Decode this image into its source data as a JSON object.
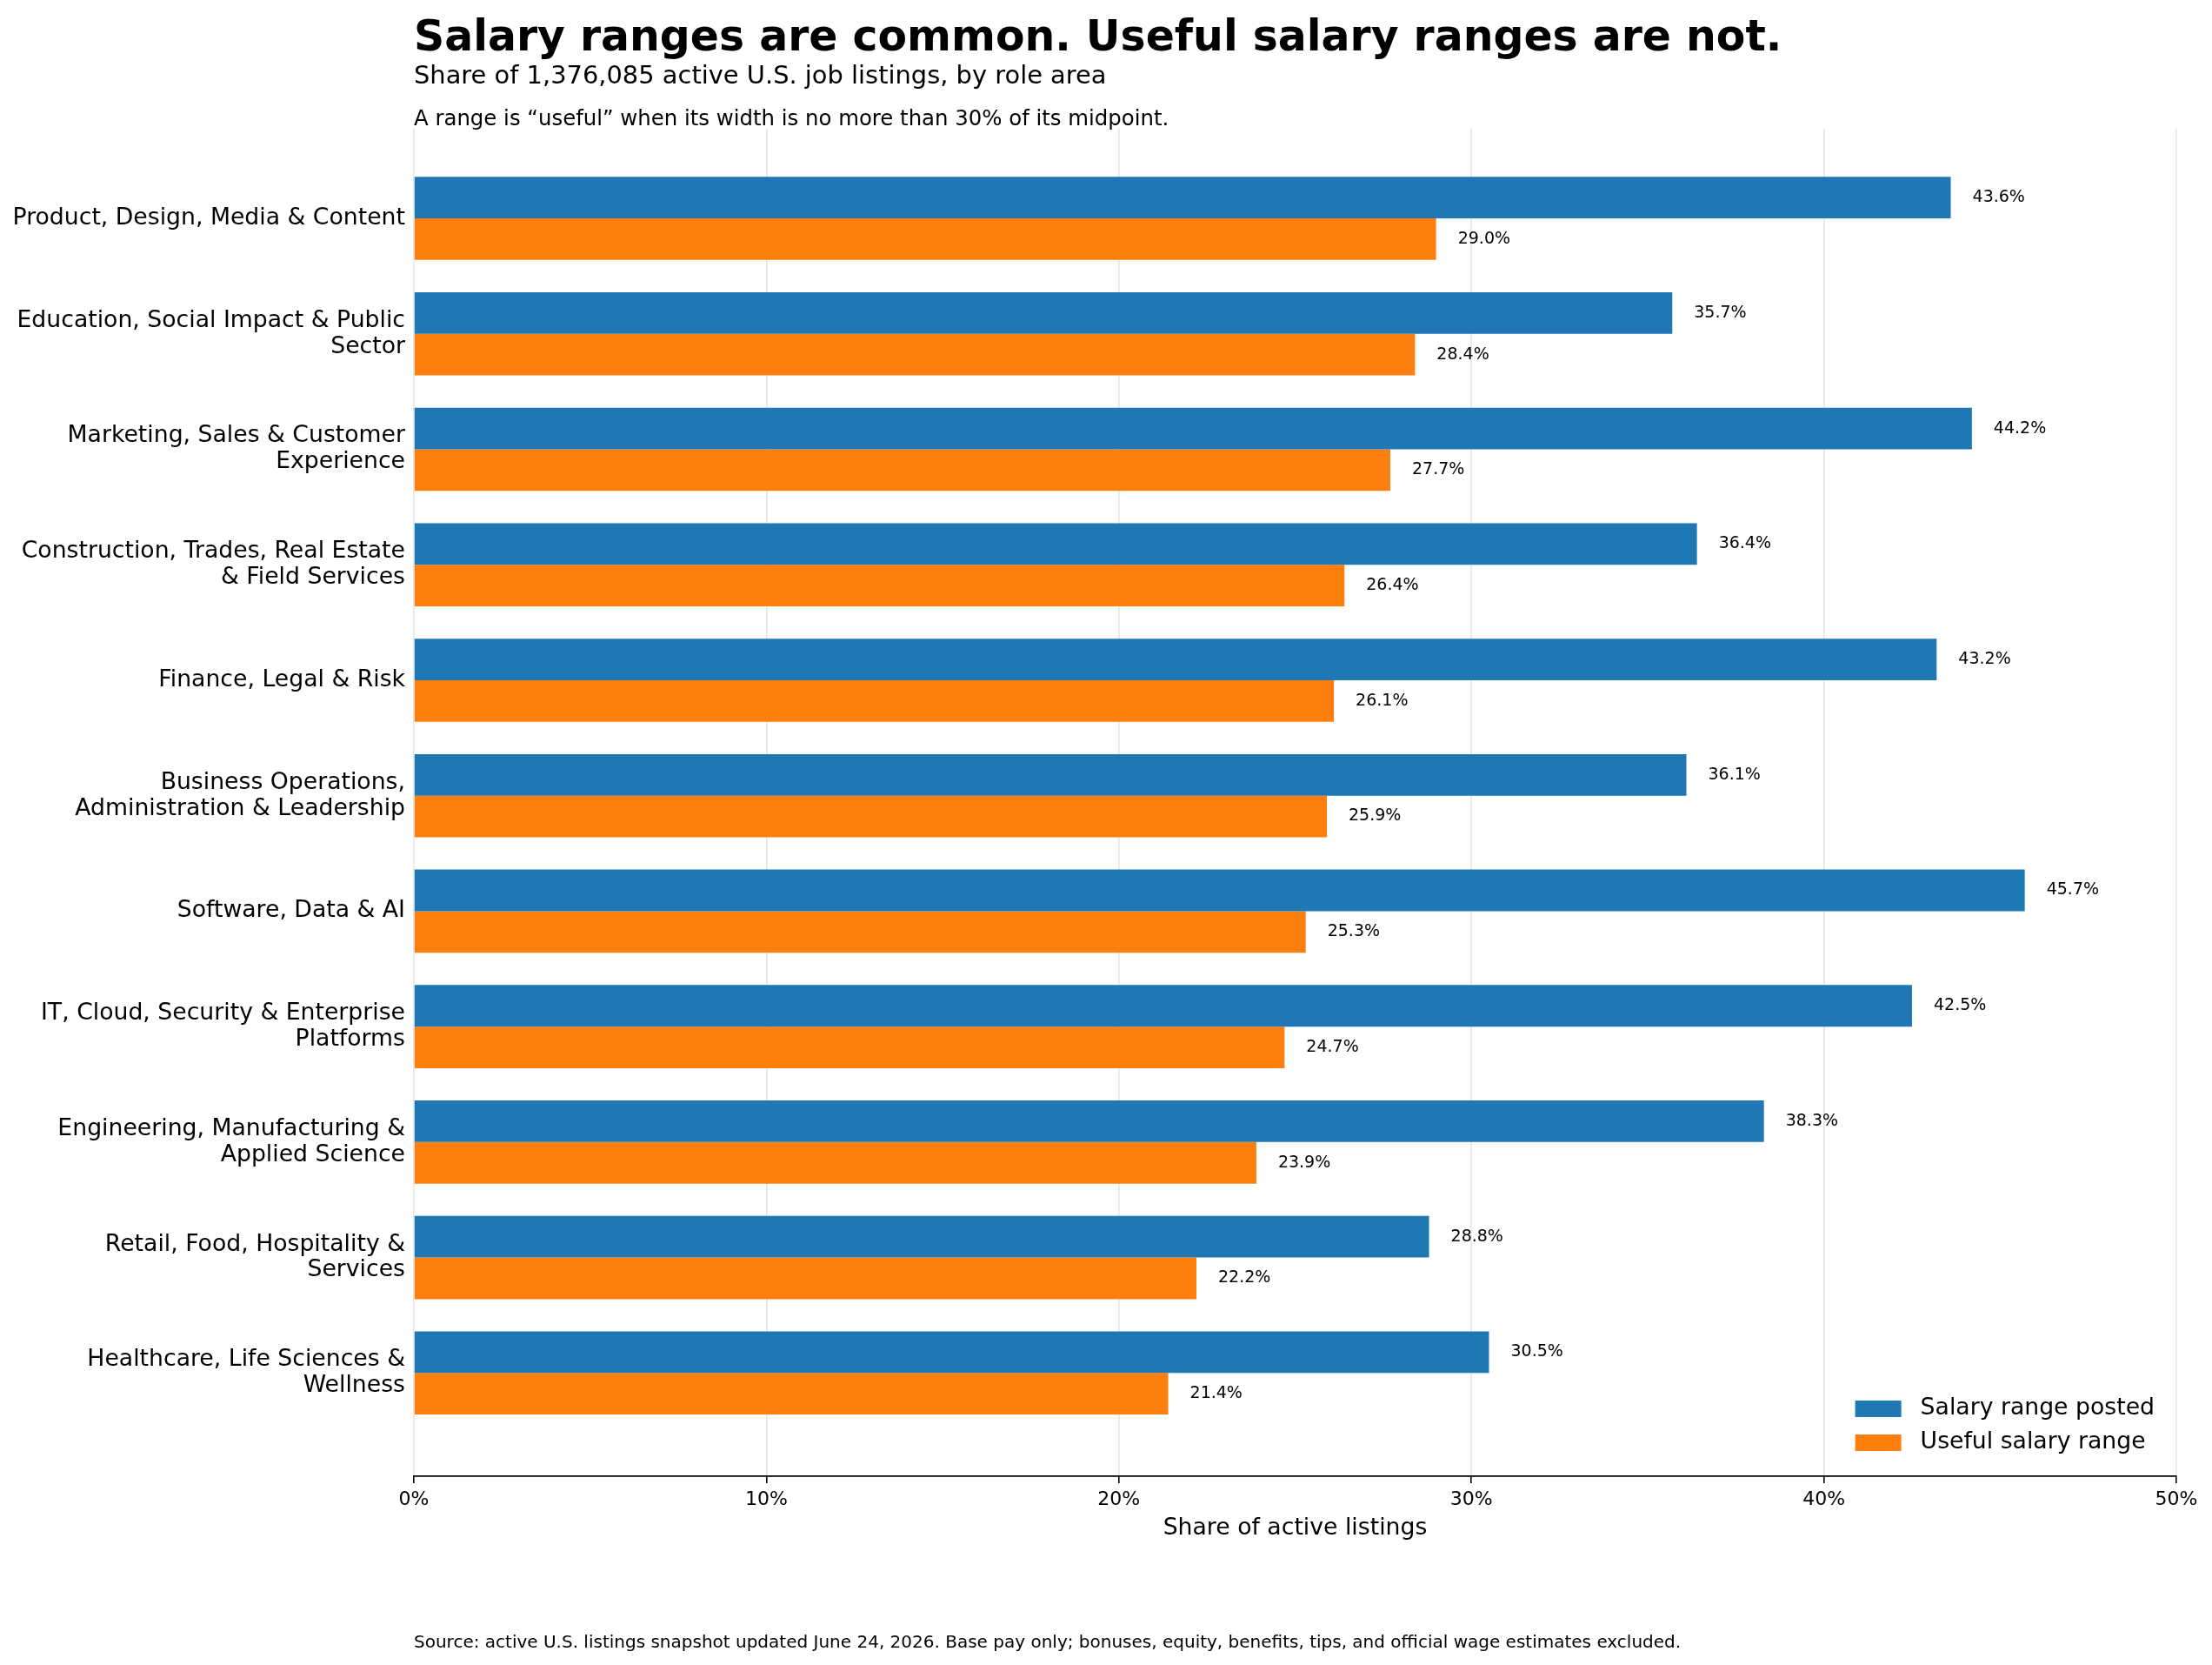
{
  "chart_data": {
    "type": "bar",
    "orientation": "horizontal",
    "title": "Salary ranges are common. Useful salary ranges are not.",
    "subtitle": "Share of 1,376,085 active U.S. job listings, by role area",
    "xlabel": "Share of active listings",
    "annotations": [
      "A range is “useful” when its width is no more than 30% of its midpoint.",
      "Source: active U.S. listings snapshot updated June 24, 2026. Base pay only; bonuses, equity, benefits, tips, and official wage estimates excluded."
    ],
    "categories": [
      "Product, Design, Media & Content",
      "Education, Social Impact & Public Sector",
      "Marketing, Sales & Customer Experience",
      "Construction, Trades, Real Estate & Field Services",
      "Finance, Legal & Risk",
      "Business Operations, Administration & Leadership",
      "Software, Data & AI",
      "IT, Cloud, Security & Enterprise Platforms",
      "Engineering, Manufacturing & Applied Science",
      "Retail, Food, Hospitality & Services",
      "Healthcare, Life Sciences & Wellness"
    ],
    "series": [
      {
        "name": "Salary range posted",
        "color": "#1f77b4",
        "values": [
          43.6,
          35.7,
          44.2,
          36.4,
          43.2,
          36.1,
          45.7,
          42.5,
          38.3,
          28.8,
          30.5
        ],
        "value_labels": [
          "43.6%",
          "35.7%",
          "44.2%",
          "36.4%",
          "43.2%",
          "36.1%",
          "45.7%",
          "42.5%",
          "38.3%",
          "28.8%",
          "30.5%"
        ]
      },
      {
        "name": "Useful salary range",
        "color": "#ff7f0e",
        "values": [
          29.0,
          28.4,
          27.7,
          26.4,
          26.1,
          25.9,
          25.3,
          24.7,
          23.9,
          22.2,
          21.4
        ],
        "value_labels": [
          "29.0%",
          "28.4%",
          "27.7%",
          "26.4%",
          "26.1%",
          "25.9%",
          "25.3%",
          "24.7%",
          "23.9%",
          "22.2%",
          "21.4%"
        ]
      }
    ],
    "xlim": [
      0,
      50
    ],
    "xticks": [
      {
        "value": 0,
        "label": "0%"
      },
      {
        "value": 10,
        "label": "10%"
      },
      {
        "value": 20,
        "label": "20%"
      },
      {
        "value": 30,
        "label": "30%"
      },
      {
        "value": 40,
        "label": "40%"
      },
      {
        "value": 50,
        "label": "50%"
      }
    ],
    "grid": "x",
    "legend": "bottom right"
  }
}
